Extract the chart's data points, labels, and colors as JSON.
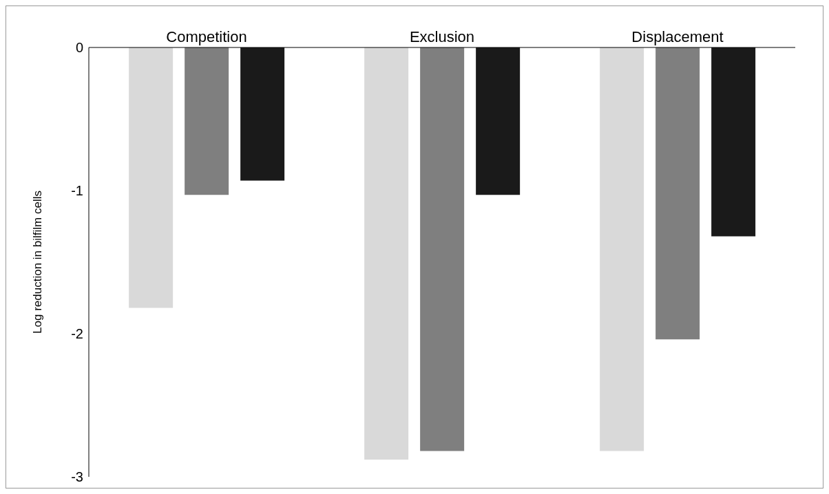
{
  "chart_data": {
    "type": "bar",
    "ylabel": "Log reduction in bilfilm cells",
    "categories": [
      "Competition",
      "Exclusion",
      "Displacement"
    ],
    "series": [
      {
        "color": "#d9d9d9",
        "values": [
          -1.82,
          -2.88,
          -2.82
        ]
      },
      {
        "color": "#7f7f7f",
        "values": [
          -1.03,
          -2.82,
          -2.04
        ]
      },
      {
        "color": "#1a1a1a",
        "values": [
          -0.93,
          -1.03,
          -1.32
        ]
      }
    ],
    "ylim": [
      -3,
      0
    ],
    "yticks": [
      0,
      -1,
      -2,
      -3
    ],
    "grid": false,
    "legend": false
  }
}
